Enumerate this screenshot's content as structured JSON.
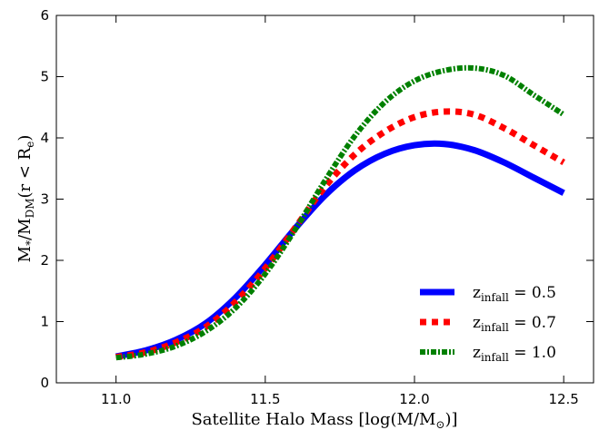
{
  "chart_data": {
    "type": "line",
    "xlabel": "Satellite Halo Mass [log(M/M⊙)]",
    "ylabel": "M*/MDM(r<Re)",
    "xlim": [
      10.8,
      12.6
    ],
    "ylim": [
      0,
      6
    ],
    "xticks": [
      "11.0",
      "11.5",
      "12.0",
      "12.5"
    ],
    "yticks": [
      "0",
      "1",
      "2",
      "3",
      "4",
      "5",
      "6"
    ],
    "grid": false,
    "legend_position": "lower-right",
    "x": [
      11.0,
      11.1,
      11.2,
      11.3,
      11.4,
      11.5,
      11.6,
      11.7,
      11.8,
      11.9,
      12.0,
      12.1,
      12.2,
      12.3,
      12.4,
      12.5
    ],
    "series": [
      {
        "name": "zinfall = 0.5",
        "color": "#0000ff",
        "style": "solid",
        "values": [
          0.43,
          0.53,
          0.7,
          0.97,
          1.39,
          1.93,
          2.52,
          3.06,
          3.47,
          3.74,
          3.88,
          3.9,
          3.8,
          3.6,
          3.35,
          3.1
        ]
      },
      {
        "name": "zinfall = 0.7",
        "color": "#ff0000",
        "style": "dashed",
        "values": [
          0.42,
          0.5,
          0.66,
          0.91,
          1.32,
          1.87,
          2.53,
          3.2,
          3.73,
          4.1,
          4.34,
          4.43,
          4.38,
          4.16,
          3.88,
          3.6
        ]
      },
      {
        "name": "zinfall = 1.0",
        "color": "#008000",
        "style": "dashdot",
        "values": [
          0.41,
          0.47,
          0.6,
          0.84,
          1.22,
          1.78,
          2.5,
          3.3,
          4.03,
          4.58,
          4.93,
          5.1,
          5.14,
          5.02,
          4.7,
          4.38
        ]
      }
    ]
  }
}
